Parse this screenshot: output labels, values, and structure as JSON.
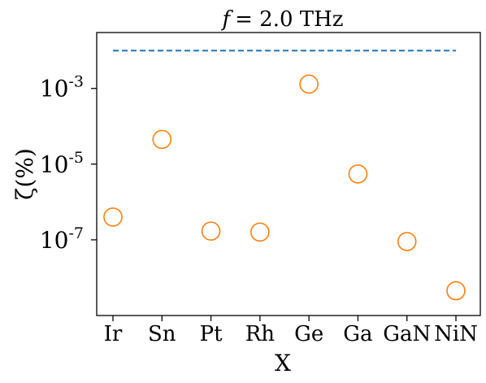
{
  "chart_data": {
    "type": "scatter",
    "title": "f = 2.0 THz",
    "title_prefix": "f",
    "title_suffix": "= 2.0 THz",
    "xlabel": "X",
    "ylabel": "ζ(%)",
    "y_scale": "log",
    "ylim": [
      1e-09,
      0.03
    ],
    "categories": [
      "Ir",
      "Sn",
      "Pt",
      "Rh",
      "Ge",
      "Ga",
      "GaN",
      "NiN"
    ],
    "series": [
      {
        "color": "#ff7f0e",
        "marker": "open-circle",
        "values": [
          4e-07,
          4.5e-05,
          1.7e-07,
          1.6e-07,
          0.0013,
          5.5e-06,
          9e-08,
          4.5e-09
        ]
      }
    ],
    "reference_line": {
      "value": 0.01,
      "style": "dashed",
      "color": "#1f77b4"
    },
    "yticks": [
      {
        "value": 0.001,
        "base": "10",
        "exp": "-3"
      },
      {
        "value": 1e-05,
        "base": "10",
        "exp": "-5"
      },
      {
        "value": 1e-07,
        "base": "10",
        "exp": "-7"
      }
    ],
    "grid": false,
    "legend": "none"
  }
}
